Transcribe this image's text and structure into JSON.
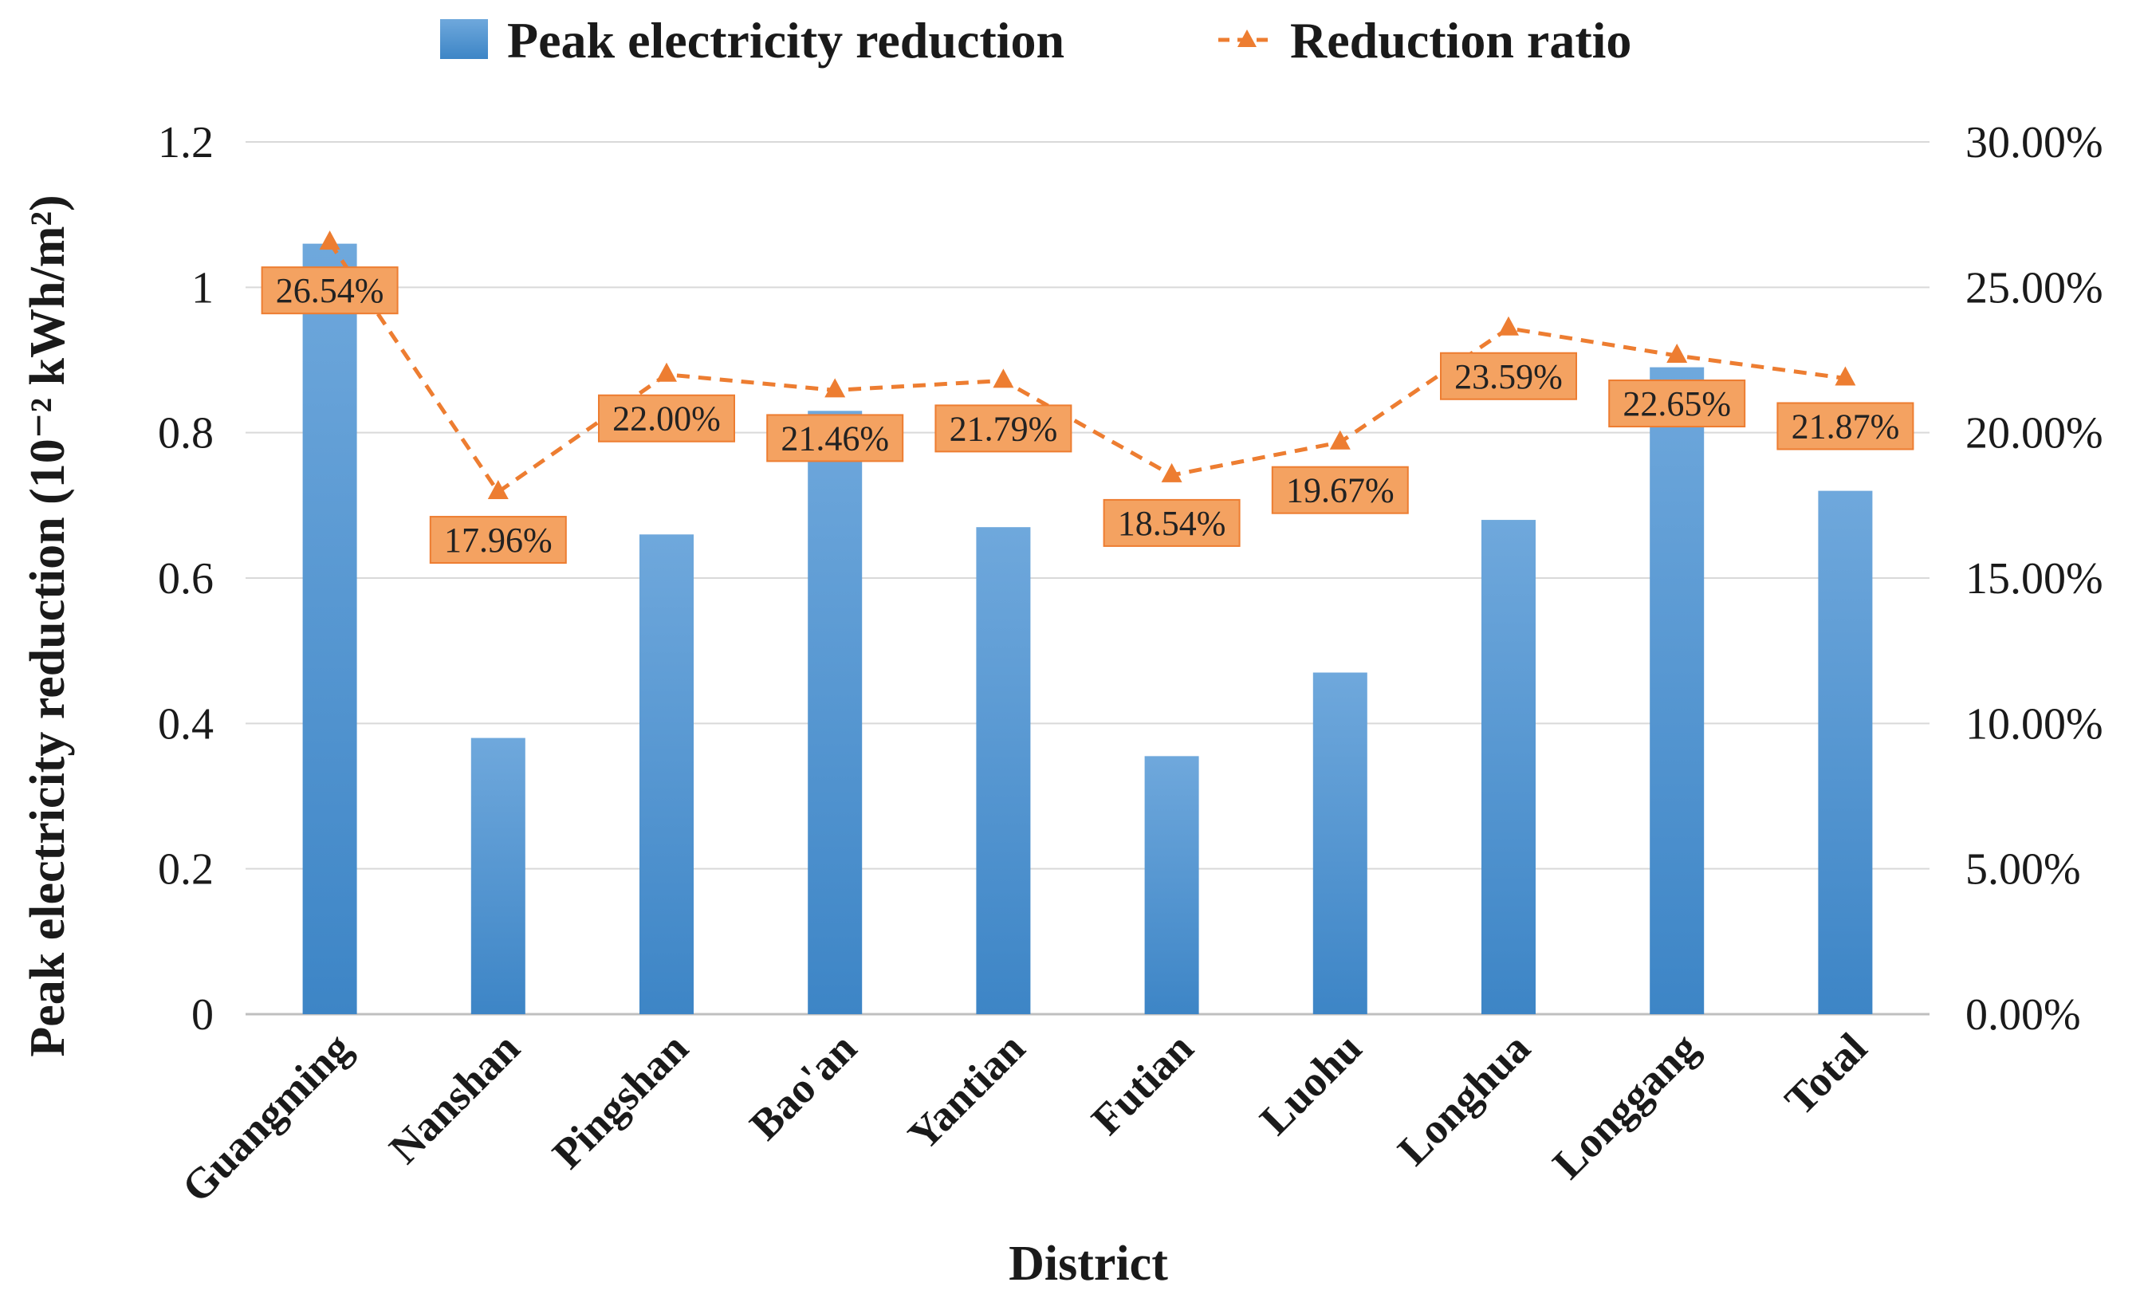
{
  "chart_data": {
    "type": "bar",
    "title": "",
    "xlabel": "District",
    "ylabel": "Peak electricity reduction (10⁻² kWh/m²)",
    "categories": [
      "Guangming",
      "Nanshan",
      "Pingshan",
      "Bao'an",
      "Yantian",
      "Futian",
      "Luohu",
      "Longhua",
      "Longgang",
      "Total"
    ],
    "series": [
      {
        "name": "Peak electricity reduction",
        "type": "bar",
        "axis": "left",
        "color": "#5b9bd5",
        "values": [
          1.06,
          0.38,
          0.66,
          0.83,
          0.67,
          0.355,
          0.47,
          0.68,
          0.89,
          0.72
        ]
      },
      {
        "name": "Reduction ratio",
        "type": "line",
        "axis": "right",
        "color": "#ed7d31",
        "values": [
          26.54,
          17.96,
          22.0,
          21.46,
          21.79,
          18.54,
          19.67,
          23.59,
          22.65,
          21.87
        ],
        "labels": [
          "26.54%",
          "17.96%",
          "22.00%",
          "21.46%",
          "21.79%",
          "18.54%",
          "19.67%",
          "23.59%",
          "22.65%",
          "21.87%"
        ]
      }
    ],
    "ylim": [
      0,
      1.2
    ],
    "yticks": [
      "0",
      "0.2",
      "0.4",
      "0.6",
      "0.8",
      "1",
      "1.2"
    ],
    "y2lim": [
      0,
      30
    ],
    "y2ticks": [
      "0.00%",
      "5.00%",
      "10.00%",
      "15.00%",
      "20.00%",
      "25.00%",
      "30.00%"
    ],
    "grid": true,
    "legend": "top-center",
    "legend_entries": [
      "Peak electricity reduction",
      "Reduction ratio"
    ]
  }
}
